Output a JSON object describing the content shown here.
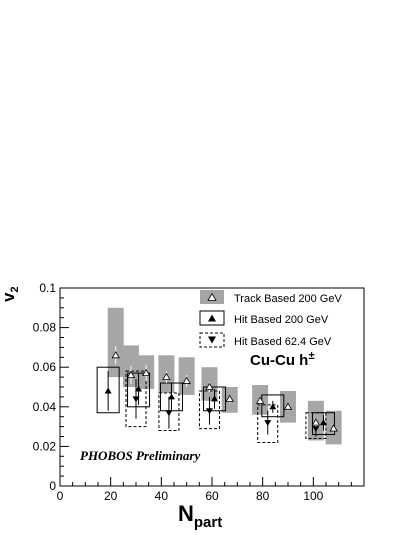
{
  "chart_data": {
    "type": "scatter",
    "xlabel_main": "N",
    "xlabel_sub": "part",
    "ylabel_main": "v",
    "ylabel_sub": "2",
    "xlim": [
      0,
      120
    ],
    "ylim": [
      0,
      0.1
    ],
    "x_ticks": [
      0,
      20,
      40,
      60,
      80,
      100
    ],
    "y_ticks": [
      "0",
      "0.02",
      "0.04",
      "0.06",
      "0.08",
      "0.1"
    ],
    "y_tick_values": [
      0,
      0.02,
      0.04,
      0.06,
      0.08,
      0.1
    ],
    "legend_placement": "top-right",
    "annotation_system": "Cu-Cu h",
    "annotation_superscript": "±",
    "annotation_preliminary": "PHOBOS Preliminary",
    "series": [
      {
        "name": "Track Based 200 GeV",
        "marker": "open-triangle-up",
        "syst_style": "grey-band",
        "points": [
          {
            "x": 22,
            "y": 0.066,
            "err": 0.0045,
            "syst_lo": 0.055,
            "syst_hi": 0.09
          },
          {
            "x": 28,
            "y": 0.056,
            "err": 0.0045,
            "syst_lo": 0.05,
            "syst_hi": 0.071
          },
          {
            "x": 34,
            "y": 0.057,
            "err": 0.004,
            "syst_lo": 0.049,
            "syst_hi": 0.066
          },
          {
            "x": 42,
            "y": 0.055,
            "err": 0.003,
            "syst_lo": 0.047,
            "syst_hi": 0.066
          },
          {
            "x": 50,
            "y": 0.053,
            "err": 0.003,
            "syst_lo": 0.046,
            "syst_hi": 0.065
          },
          {
            "x": 59,
            "y": 0.05,
            "err": 0.0025,
            "syst_lo": 0.043,
            "syst_hi": 0.06
          },
          {
            "x": 67,
            "y": 0.044,
            "err": 0.002,
            "syst_lo": 0.037,
            "syst_hi": 0.05
          },
          {
            "x": 79,
            "y": 0.043,
            "err": 0.002,
            "syst_lo": 0.036,
            "syst_hi": 0.051
          },
          {
            "x": 90,
            "y": 0.04,
            "err": 0.002,
            "syst_lo": 0.032,
            "syst_hi": 0.048
          },
          {
            "x": 101,
            "y": 0.032,
            "err": 0.002,
            "syst_lo": 0.023,
            "syst_hi": 0.043
          },
          {
            "x": 108,
            "y": 0.029,
            "err": 0.002,
            "syst_lo": 0.021,
            "syst_hi": 0.038
          }
        ]
      },
      {
        "name": "Hit Based 200 GeV",
        "marker": "filled-triangle-up",
        "syst_style": "solid-box",
        "points": [
          {
            "x": 19,
            "y": 0.048,
            "err": 0.01,
            "syst_lo": 0.037,
            "syst_hi": 0.06
          },
          {
            "x": 31,
            "y": 0.049,
            "err": 0.008,
            "syst_lo": 0.04,
            "syst_hi": 0.057
          },
          {
            "x": 44,
            "y": 0.045,
            "err": 0.007,
            "syst_lo": 0.038,
            "syst_hi": 0.052
          },
          {
            "x": 61,
            "y": 0.044,
            "err": 0.005,
            "syst_lo": 0.038,
            "syst_hi": 0.05
          },
          {
            "x": 84,
            "y": 0.04,
            "err": 0.003,
            "syst_lo": 0.035,
            "syst_hi": 0.046
          },
          {
            "x": 104,
            "y": 0.032,
            "err": 0.004,
            "syst_lo": 0.026,
            "syst_hi": 0.037
          }
        ]
      },
      {
        "name": "Hit Based 62.4 GeV",
        "marker": "filled-triangle-down",
        "syst_style": "dashed-box",
        "points": [
          {
            "x": 30,
            "y": 0.044,
            "err": 0.01,
            "syst_lo": 0.03,
            "syst_hi": 0.058
          },
          {
            "x": 43,
            "y": 0.037,
            "err": 0.008,
            "syst_lo": 0.028,
            "syst_hi": 0.047
          },
          {
            "x": 59,
            "y": 0.038,
            "err": 0.007,
            "syst_lo": 0.029,
            "syst_hi": 0.048
          },
          {
            "x": 82,
            "y": 0.032,
            "err": 0.006,
            "syst_lo": 0.022,
            "syst_hi": 0.041
          },
          {
            "x": 101,
            "y": 0.029,
            "err": 0.004,
            "syst_lo": 0.024,
            "syst_hi": 0.037
          }
        ]
      }
    ]
  }
}
